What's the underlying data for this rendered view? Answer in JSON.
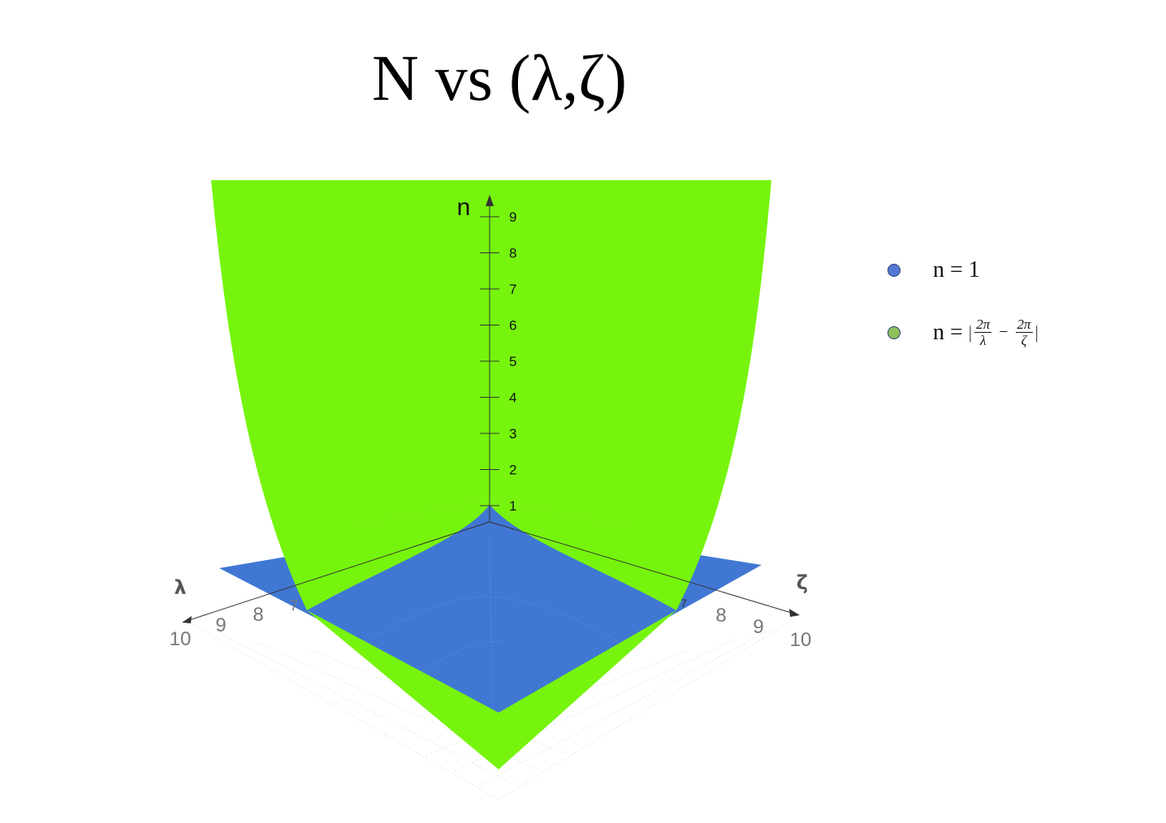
{
  "chart_data": {
    "type": "surface3d",
    "title": "N vs (λ,ζ)",
    "axes": {
      "n": {
        "label": "n",
        "ticks": [
          "1",
          "2",
          "3",
          "4",
          "5",
          "6",
          "7",
          "8",
          "9"
        ],
        "range": [
          0,
          9
        ]
      },
      "lambda": {
        "label": "λ",
        "ticks": [
          "7",
          "8",
          "9",
          "10"
        ],
        "range": [
          0,
          10
        ]
      },
      "zeta": {
        "label": "ζ",
        "ticks": [
          "7",
          "8",
          "9",
          "10"
        ],
        "range": [
          0,
          10
        ]
      }
    },
    "series": [
      {
        "name": "n = 1",
        "kind": "plane",
        "value": 1,
        "color": "#3f76d2"
      },
      {
        "name": "n = |2π/λ − 2π/ζ|",
        "kind": "surface",
        "color": "#76f40d"
      }
    ],
    "legend": {
      "position": "top-right",
      "items": [
        {
          "label": "n = 1",
          "color": "#5478d4"
        },
        {
          "label_prefix": "n = ",
          "bar": "|",
          "num1": "2π",
          "den1": "λ",
          "minus": "−",
          "num2": "2π",
          "den2": "ζ",
          "color": "#8dc05a"
        }
      ]
    }
  }
}
